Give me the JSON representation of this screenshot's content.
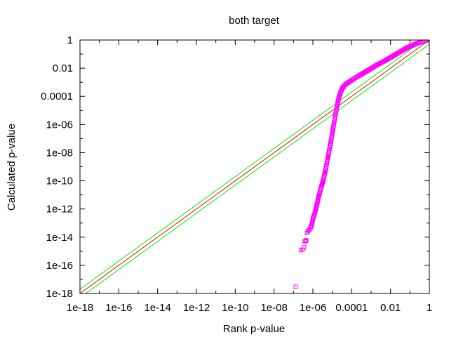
{
  "chart_data": {
    "type": "scatter",
    "title": "both target",
    "xlabel": "Rank p-value",
    "ylabel": "Calculated p-value",
    "x_scale": "log",
    "y_scale": "log",
    "xlim": [
      1e-18,
      1
    ],
    "ylim": [
      1e-18,
      1
    ],
    "x_ticks": [
      {
        "value": 1e-18,
        "label": "1e-18"
      },
      {
        "value": 1e-16,
        "label": "1e-16"
      },
      {
        "value": 1e-14,
        "label": "1e-14"
      },
      {
        "value": 1e-12,
        "label": "1e-12"
      },
      {
        "value": 1e-10,
        "label": "1e-10"
      },
      {
        "value": 1e-08,
        "label": "1e-08"
      },
      {
        "value": 1e-06,
        "label": "1e-06"
      },
      {
        "value": 0.0001,
        "label": "0.0001"
      },
      {
        "value": 0.01,
        "label": "0.01"
      },
      {
        "value": 1,
        "label": "1"
      }
    ],
    "y_ticks": [
      {
        "value": 1e-18,
        "label": "1e-18"
      },
      {
        "value": 1e-16,
        "label": "1e-16"
      },
      {
        "value": 1e-14,
        "label": "1e-14"
      },
      {
        "value": 1e-12,
        "label": "1e-12"
      },
      {
        "value": 1e-10,
        "label": "1e-10"
      },
      {
        "value": 1e-08,
        "label": "1e-08"
      },
      {
        "value": 1e-06,
        "label": "1e-06"
      },
      {
        "value": 0.0001,
        "label": "0.0001"
      },
      {
        "value": 0.01,
        "label": "0.01"
      },
      {
        "value": 1,
        "label": "1"
      }
    ],
    "grid": false,
    "legend": "none",
    "series": [
      {
        "kind": "points",
        "marker": "open-square",
        "color": "#ff00ff",
        "points": [
          [
            1.3e-07,
            3e-18
          ],
          [
            2.4e-07,
            1.2e-15
          ],
          [
            3e-07,
            1.3e-15
          ],
          [
            3.5e-07,
            1.9e-15
          ],
          [
            3.8e-07,
            5e-15
          ],
          [
            4.2e-07,
            5.5e-15
          ],
          [
            4.6e-07,
            6e-15
          ],
          [
            5e-07,
            2e-14
          ],
          [
            5.6e-07,
            2.6e-14
          ],
          [
            6.2e-07,
            3.2e-14
          ],
          [
            7e-07,
            3.8e-14
          ],
          [
            7.8e-07,
            5e-14
          ],
          [
            8.5e-07,
            7e-14
          ],
          [
            9.2e-07,
            1e-13
          ],
          [
            1e-06,
            2e-13
          ],
          [
            1.1e-06,
            3e-13
          ],
          [
            1.25e-06,
            5e-13
          ],
          [
            1.4e-06,
            1e-12
          ],
          [
            1.6e-06,
            2e-12
          ],
          [
            1.8e-06,
            4e-12
          ],
          [
            2e-06,
            8e-12
          ],
          [
            2.3e-06,
            1.6e-11
          ],
          [
            2.6e-06,
            3e-11
          ],
          [
            3e-06,
            6e-11
          ],
          [
            3.5e-06,
            1.2e-10
          ],
          [
            4e-06,
            3e-10
          ],
          [
            4.5e-06,
            6e-10
          ],
          [
            5e-06,
            1.3e-09
          ],
          [
            5.6e-06,
            3e-09
          ],
          [
            6.3e-06,
            7e-09
          ],
          [
            7e-06,
            1.5e-08
          ],
          [
            8e-06,
            4e-08
          ],
          [
            9e-06,
            1e-07
          ],
          [
            1e-05,
            2.5e-07
          ],
          [
            1.12e-05,
            6e-07
          ],
          [
            1.25e-05,
            1.5e-06
          ],
          [
            1.4e-05,
            4e-06
          ],
          [
            1.6e-05,
            1e-05
          ],
          [
            1.8e-05,
            2.5e-05
          ],
          [
            2e-05,
            5e-05
          ],
          [
            2.3e-05,
            0.0001
          ],
          [
            2.7e-05,
            0.0002
          ],
          [
            3.2e-05,
            0.00035
          ],
          [
            4e-05,
            0.00055
          ],
          [
            5e-05,
            0.00075
          ],
          [
            7e-05,
            0.001
          ],
          [
            0.0001,
            0.0014
          ],
          [
            0.00015,
            0.002
          ],
          [
            0.00025,
            0.003
          ],
          [
            0.0004,
            0.0045
          ],
          [
            0.0007,
            0.007
          ],
          [
            0.0012,
            0.011
          ],
          [
            0.002,
            0.017
          ],
          [
            0.004,
            0.028
          ],
          [
            0.008,
            0.048
          ],
          [
            0.015,
            0.08
          ],
          [
            0.03,
            0.14
          ],
          [
            0.06,
            0.25
          ],
          [
            0.12,
            0.4
          ],
          [
            0.25,
            0.6
          ],
          [
            0.5,
            0.85
          ],
          [
            1.0,
            1.0
          ]
        ]
      },
      {
        "kind": "line",
        "color": "#ff0000",
        "points": [
          [
            1e-18,
            1e-18
          ],
          [
            1,
            1
          ]
        ]
      },
      {
        "kind": "line",
        "color": "#00ee00",
        "points": [
          [
            1e-18,
            2e-18
          ],
          [
            1,
            2
          ]
        ]
      },
      {
        "kind": "line",
        "color": "#00ee00",
        "points": [
          [
            1e-18,
            5e-19
          ],
          [
            1,
            0.5
          ]
        ]
      }
    ]
  }
}
